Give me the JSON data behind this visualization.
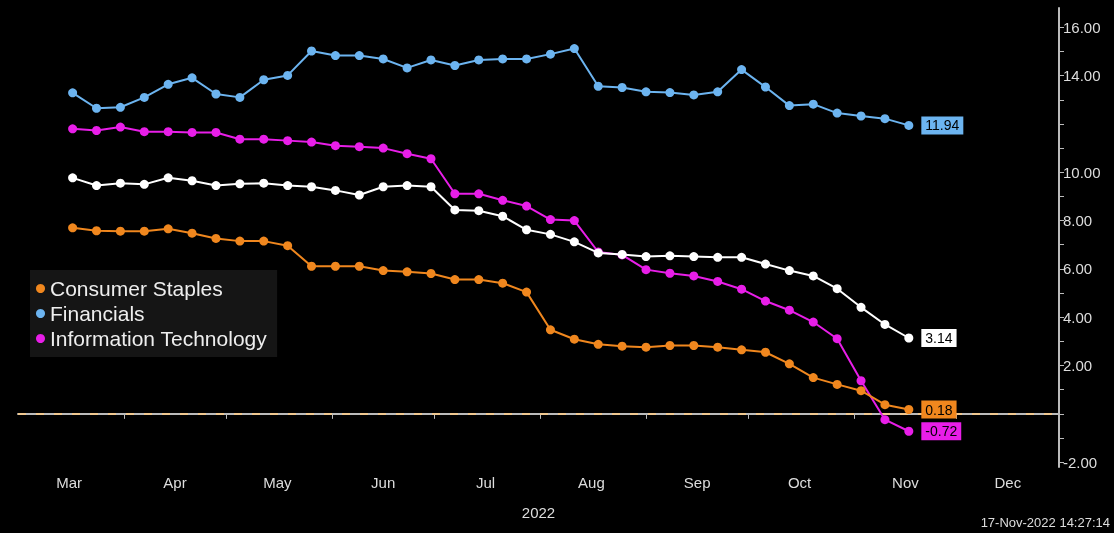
{
  "chart_data": {
    "type": "line",
    "x": [
      "2022-03-17",
      "2022-03-24",
      "2022-03-31",
      "2022-04-07",
      "2022-04-14",
      "2022-04-21",
      "2022-04-28",
      "2022-05-05",
      "2022-05-12",
      "2022-05-19",
      "2022-05-26",
      "2022-06-02",
      "2022-06-09",
      "2022-06-16",
      "2022-06-23",
      "2022-06-30",
      "2022-07-07",
      "2022-07-14",
      "2022-07-21",
      "2022-07-28",
      "2022-08-04",
      "2022-08-11",
      "2022-08-18",
      "2022-08-25",
      "2022-09-01",
      "2022-09-08",
      "2022-09-15",
      "2022-09-22",
      "2022-09-29",
      "2022-10-06",
      "2022-10-13",
      "2022-10-20",
      "2022-10-27",
      "2022-11-03",
      "2022-11-10",
      "2022-11-17"
    ],
    "series": [
      {
        "color": "#ffffff",
        "values": [
          9.77,
          9.45,
          9.55,
          9.5,
          9.77,
          9.65,
          9.45,
          9.52,
          9.55,
          9.45,
          9.4,
          9.25,
          9.06,
          9.4,
          9.45,
          9.4,
          8.44,
          8.41,
          8.18,
          7.62,
          7.43,
          7.12,
          6.66,
          6.6,
          6.51,
          6.54,
          6.51,
          6.48,
          6.48,
          6.2,
          5.93,
          5.71,
          5.18,
          4.41,
          3.7,
          3.14
        ],
        "value_labels": [
          null,
          null,
          null,
          null,
          null,
          null,
          null,
          null,
          null,
          null,
          null,
          null,
          null,
          null,
          null,
          null,
          null,
          null,
          null,
          null,
          null,
          null,
          null,
          null,
          null,
          null,
          null,
          null,
          null,
          null,
          null,
          null,
          null,
          null,
          null,
          "3.14"
        ]
      },
      {
        "name": "Consumer Staples",
        "color": "#f0871e",
        "values": [
          7.7,
          7.58,
          7.56,
          7.56,
          7.66,
          7.48,
          7.26,
          7.15,
          7.15,
          6.96,
          6.11,
          6.11,
          6.11,
          5.93,
          5.88,
          5.81,
          5.56,
          5.56,
          5.41,
          5.04,
          3.48,
          3.09,
          2.88,
          2.8,
          2.76,
          2.83,
          2.83,
          2.76,
          2.65,
          2.55,
          2.07,
          1.5,
          1.22,
          0.96,
          0.38,
          0.18
        ],
        "value_labels": [
          null,
          null,
          null,
          null,
          null,
          null,
          null,
          null,
          null,
          null,
          null,
          null,
          null,
          null,
          null,
          null,
          null,
          null,
          null,
          null,
          null,
          null,
          null,
          null,
          null,
          null,
          null,
          null,
          null,
          null,
          null,
          null,
          null,
          null,
          null,
          "0.18"
        ]
      },
      {
        "name": "Financials",
        "color": "#6cb4f0",
        "values": [
          13.29,
          12.65,
          12.69,
          13.1,
          13.64,
          13.91,
          13.24,
          13.1,
          13.83,
          14.01,
          15.02,
          14.83,
          14.83,
          14.69,
          14.32,
          14.65,
          14.42,
          14.65,
          14.69,
          14.69,
          14.89,
          15.12,
          13.56,
          13.51,
          13.33,
          13.3,
          13.2,
          13.33,
          14.25,
          13.53,
          12.76,
          12.82,
          12.45,
          12.33,
          12.22,
          11.94
        ],
        "value_labels": [
          null,
          null,
          null,
          null,
          null,
          null,
          null,
          null,
          null,
          null,
          null,
          null,
          null,
          null,
          null,
          null,
          null,
          null,
          null,
          null,
          null,
          null,
          null,
          null,
          null,
          null,
          null,
          null,
          null,
          null,
          null,
          null,
          null,
          null,
          null,
          "11.94"
        ]
      },
      {
        "name": "Information Technology",
        "color": "#e81ee8",
        "values": [
          11.8,
          11.73,
          11.87,
          11.68,
          11.68,
          11.65,
          11.65,
          11.37,
          11.37,
          11.31,
          11.25,
          11.1,
          11.06,
          11.0,
          10.77,
          10.56,
          9.11,
          9.11,
          8.84,
          8.6,
          8.04,
          8.0,
          6.7,
          6.58,
          5.97,
          5.82,
          5.71,
          5.48,
          5.16,
          4.67,
          4.29,
          3.8,
          3.11,
          1.37,
          -0.24,
          -0.72
        ],
        "value_labels": [
          null,
          null,
          null,
          null,
          null,
          null,
          null,
          null,
          null,
          null,
          null,
          null,
          null,
          null,
          null,
          null,
          null,
          null,
          null,
          null,
          null,
          null,
          null,
          null,
          null,
          null,
          null,
          null,
          null,
          null,
          null,
          null,
          null,
          null,
          null,
          "-0.72"
        ]
      }
    ],
    "xlabel": "2022",
    "xlim": [
      "2022-03-01",
      "2022-12-31"
    ],
    "xticks": [
      {
        "value": "2022-03-16",
        "label": "Mar"
      },
      {
        "value": "2022-04-01",
        "label": null
      },
      {
        "value": "2022-04-16",
        "label": "Apr"
      },
      {
        "value": "2022-05-01",
        "label": null
      },
      {
        "value": "2022-05-16",
        "label": "May"
      },
      {
        "value": "2022-06-01",
        "label": null
      },
      {
        "value": "2022-06-16",
        "label": "Jun"
      },
      {
        "value": "2022-07-01",
        "label": null
      },
      {
        "value": "2022-07-16",
        "label": "Jul"
      },
      {
        "value": "2022-08-01",
        "label": null
      },
      {
        "value": "2022-08-16",
        "label": "Aug"
      },
      {
        "value": "2022-09-01",
        "label": null
      },
      {
        "value": "2022-09-16",
        "label": "Sep"
      },
      {
        "value": "2022-10-01",
        "label": null
      },
      {
        "value": "2022-10-16",
        "label": "Oct"
      },
      {
        "value": "2022-11-01",
        "label": null
      },
      {
        "value": "2022-11-16",
        "label": "Nov"
      },
      {
        "value": "2022-12-01",
        "label": null
      },
      {
        "value": "2022-12-16",
        "label": "Dec"
      }
    ],
    "ylim": [
      -2.2,
      16.8
    ],
    "yticks": [
      {
        "value": -2,
        "label": "-2.00"
      },
      {
        "value": -1,
        "label": null
      },
      {
        "value": 0,
        "label": null
      },
      {
        "value": 1,
        "label": null
      },
      {
        "value": 2,
        "label": "2.00"
      },
      {
        "value": 3,
        "label": null
      },
      {
        "value": 4,
        "label": "4.00"
      },
      {
        "value": 5,
        "label": null
      },
      {
        "value": 6,
        "label": "6.00"
      },
      {
        "value": 7,
        "label": null
      },
      {
        "value": 8,
        "label": "8.00"
      },
      {
        "value": 9,
        "label": null
      },
      {
        "value": 10,
        "label": "10.00"
      },
      {
        "value": 11,
        "label": null
      },
      {
        "value": 12,
        "label": null
      },
      {
        "value": 13,
        "label": null
      },
      {
        "value": 14,
        "label": "14.00"
      },
      {
        "value": 15,
        "label": null
      },
      {
        "value": 16,
        "label": "16.00"
      }
    ],
    "ref_lines": [
      {
        "axis": "y",
        "value": 0,
        "color": "#f0c890",
        "line_style": "dashed"
      }
    ],
    "annotations": [
      "17-Nov-2022 14:27:14"
    ],
    "grid": false,
    "legend": "left",
    "marker": "circle",
    "line_style": "solid"
  }
}
